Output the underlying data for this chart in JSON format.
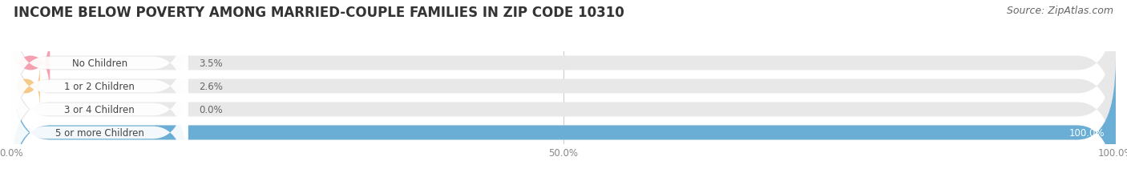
{
  "title": "INCOME BELOW POVERTY AMONG MARRIED-COUPLE FAMILIES IN ZIP CODE 10310",
  "source": "Source: ZipAtlas.com",
  "categories": [
    "No Children",
    "1 or 2 Children",
    "3 or 4 Children",
    "5 or more Children"
  ],
  "values": [
    3.5,
    2.6,
    0.0,
    100.0
  ],
  "bar_colors": [
    "#f4a0b0",
    "#f5c98a",
    "#f4a0b0",
    "#6aaed6"
  ],
  "label_bg_colors": [
    "#ffffff",
    "#ffffff",
    "#ffffff",
    "#ffffff"
  ],
  "label_text_color": "#444444",
  "value_text_color_outside": "#666666",
  "value_text_color_inside": "#ffffff",
  "bg_color": "#ffffff",
  "bar_bg_color": "#e8e8e8",
  "xlim": [
    0,
    100
  ],
  "xticks": [
    0.0,
    50.0,
    100.0
  ],
  "xtick_labels": [
    "0.0%",
    "50.0%",
    "100.0%"
  ],
  "title_fontsize": 12,
  "source_fontsize": 9,
  "bar_height": 0.62,
  "figsize": [
    14.06,
    2.32
  ],
  "dpi": 100
}
